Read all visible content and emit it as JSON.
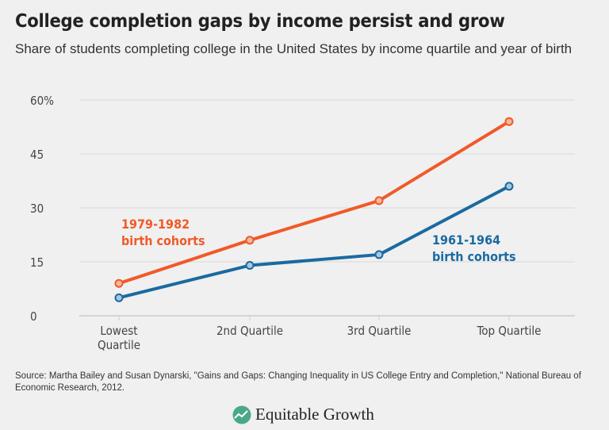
{
  "title": "College completion gaps by income persist and grow",
  "subtitle": "Share of students completing college in the United States by income quartile and year of birth",
  "source": "Source: Martha Bailey and Susan Dynarski, \"Gains and Gaps: Changing Inequality in US College Entry and Completion,\" National Bureau of Economic Research, 2012.",
  "logo_text": "Equitable Growth",
  "chart_data": {
    "type": "line",
    "categories": [
      "Lowest Quartile",
      "2nd Quartile",
      "3rd Quartile",
      "Top Quartile"
    ],
    "ylim": [
      0,
      60
    ],
    "yticks": [
      0,
      15,
      30,
      45,
      60
    ],
    "ytick_labels": [
      "0",
      "15",
      "30",
      "45",
      "60%"
    ],
    "grid": true,
    "series": [
      {
        "name": "1979-1982 birth cohorts",
        "label_lines": [
          "1979-1982",
          "birth cohorts"
        ],
        "color": "#f05a28",
        "values": [
          9,
          21,
          32,
          54
        ]
      },
      {
        "name": "1961-1964 birth cohorts",
        "label_lines": [
          "1961-1964",
          "birth cohorts"
        ],
        "color": "#1a6aa1",
        "values": [
          5,
          14,
          17,
          36
        ]
      }
    ]
  }
}
